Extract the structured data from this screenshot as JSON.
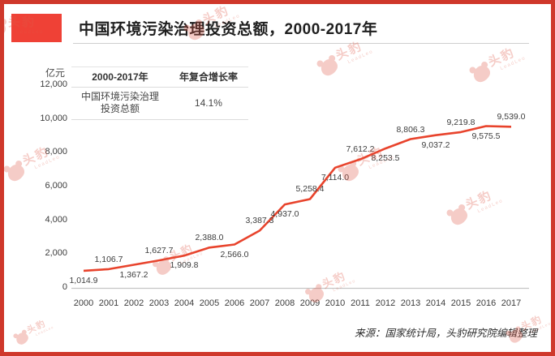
{
  "header": {
    "title": "中国环境污染治理投资总额，2000-2017年"
  },
  "info_table": {
    "headers": [
      "2000-2017年",
      "年复合增长率"
    ],
    "row": [
      "中国环境污染治理\n投资总额",
      "14.1%"
    ]
  },
  "watermark": {
    "text": "头豹",
    "subtext": "LeadLeo"
  },
  "source": "来源：国家统计局，头豹研究院编辑整理",
  "colors": {
    "frame_border": "#cf382b",
    "title_block": "#ef4136",
    "line": "#e8432c",
    "watermark": "#e05a48"
  },
  "chart_data": {
    "type": "line",
    "title": "中国环境污染治理投资总额，2000-2017年",
    "xlabel": "",
    "ylabel": "亿元",
    "x": [
      2000,
      2001,
      2002,
      2003,
      2004,
      2005,
      2006,
      2007,
      2008,
      2009,
      2010,
      2011,
      2012,
      2013,
      2014,
      2015,
      2016,
      2017
    ],
    "series": [
      {
        "name": "中国环境污染治理投资总额",
        "values": [
          1014.9,
          1106.7,
          1367.2,
          1627.7,
          1909.8,
          2388.0,
          2566.0,
          3387.3,
          4937.0,
          5258.4,
          7114.0,
          7612.2,
          8253.5,
          8806.3,
          9037.2,
          9219.8,
          9575.5,
          9539.0
        ]
      }
    ],
    "ylim": [
      0,
      12000
    ],
    "yticks": [
      0,
      2000,
      4000,
      6000,
      8000,
      10000,
      12000
    ],
    "grid": false,
    "legend_position": "none",
    "data_labels": true,
    "cagr_period": "2000-2017年",
    "cagr_metric": "年复合增长率",
    "cagr_value": "14.1%"
  }
}
